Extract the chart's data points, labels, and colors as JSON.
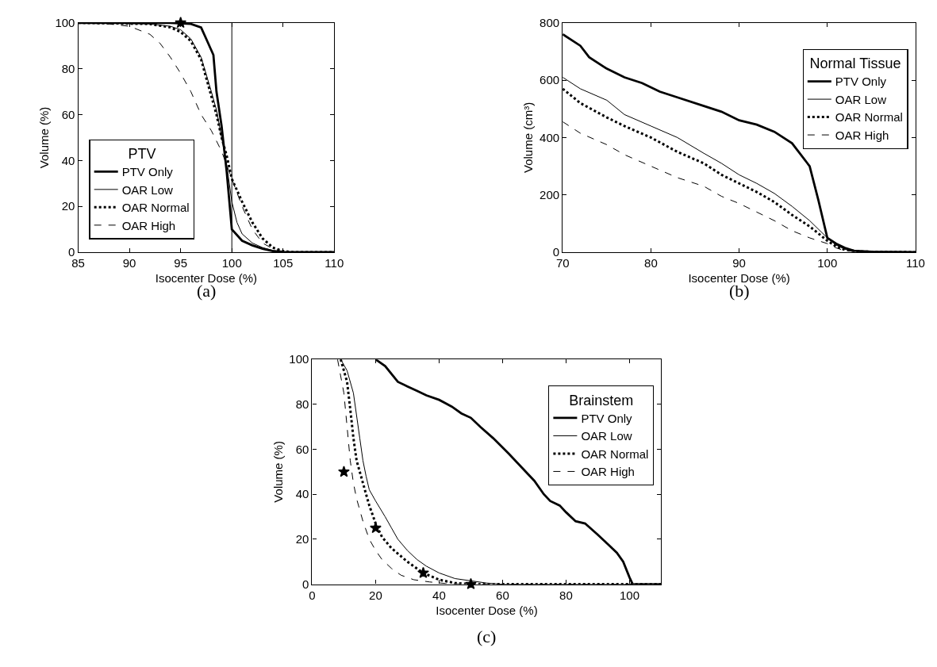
{
  "chart_data": [
    {
      "type": "line",
      "xlabel": "Isocenter Dose (%)",
      "ylabel": "Volume (%)",
      "legend_title": "PTV",
      "legend": "bottom left",
      "xlim": [
        85,
        110
      ],
      "xticks": [
        85,
        90,
        95,
        100,
        105,
        110
      ],
      "ylim": [
        0,
        100
      ],
      "yticks": [
        0,
        20,
        40,
        60,
        80,
        100
      ],
      "annotations": [
        "(a)"
      ],
      "ref_lines": [
        {
          "axis": "x",
          "value": 100,
          "color": "#000000"
        }
      ],
      "series": [
        {
          "name": "PTV Only",
          "color": "#000000",
          "line_style": "solid",
          "x": [
            85,
            94,
            96,
            97,
            97.5,
            98.2,
            98.5,
            99,
            99.5,
            100,
            101,
            102,
            103,
            104,
            105,
            110
          ],
          "values": [
            100,
            100,
            99.5,
            98,
            93,
            86,
            70,
            55,
            35,
            10,
            5,
            3,
            1.5,
            0.5,
            0,
            0
          ]
        },
        {
          "name": "OAR Low",
          "color": "#000000",
          "line_style": "solid",
          "x": [
            85,
            92,
            94,
            95,
            96,
            97,
            98,
            98.5,
            99,
            99.5,
            100,
            100.5,
            101,
            102,
            103,
            104,
            105,
            106,
            110
          ],
          "values": [
            100,
            99.5,
            98.5,
            97,
            93,
            85,
            70,
            62,
            50,
            38,
            22,
            13,
            8,
            4,
            2,
            0.8,
            0.2,
            0,
            0
          ]
        },
        {
          "name": "OAR Normal",
          "color": "#000000",
          "line_style": "dotted",
          "x": [
            85,
            92,
            94,
            95,
            96,
            97,
            98,
            98.5,
            99,
            99.5,
            100,
            101,
            102,
            103,
            104,
            105,
            106,
            110
          ],
          "values": [
            100,
            99.5,
            98,
            96,
            92,
            84,
            68,
            60,
            50,
            42,
            32,
            22,
            13,
            6,
            2,
            0.5,
            0,
            0
          ]
        },
        {
          "name": "OAR High",
          "color": "#000000",
          "line_style": "dashed",
          "x": [
            85,
            88,
            90,
            92,
            93,
            94,
            95,
            96,
            97,
            98,
            99,
            100,
            101,
            102,
            103,
            104,
            105,
            106,
            110
          ],
          "values": [
            100,
            99.5,
            98.5,
            95,
            91,
            85,
            78,
            70,
            60,
            53,
            44,
            32,
            20,
            10,
            4,
            1.5,
            0.3,
            0,
            0
          ]
        },
        {
          "type": "scatter",
          "marker": "star",
          "color": "#000000",
          "x": [
            95
          ],
          "values": [
            100
          ]
        }
      ]
    },
    {
      "type": "line",
      "xlabel": "Isocenter Dose (%)",
      "ylabel": "Volume (cm³)",
      "legend_title": "Normal Tissue",
      "legend": "top right",
      "xlim": [
        70,
        110
      ],
      "xticks": [
        70,
        80,
        90,
        100,
        110
      ],
      "ylim": [
        0,
        800
      ],
      "yticks": [
        0,
        200,
        400,
        600,
        800
      ],
      "annotations": [
        "(b)"
      ],
      "series": [
        {
          "name": "PTV Only",
          "color": "#000000",
          "line_style": "solid",
          "x": [
            70,
            72,
            73,
            75,
            77,
            79,
            81,
            83,
            86,
            88,
            90,
            92,
            94,
            96,
            98,
            99,
            100,
            101,
            102,
            103,
            105,
            110
          ],
          "values": [
            760,
            720,
            680,
            640,
            610,
            590,
            560,
            540,
            510,
            490,
            460,
            445,
            420,
            380,
            300,
            180,
            50,
            30,
            15,
            5,
            2,
            0
          ]
        },
        {
          "name": "OAR Low",
          "color": "#000000",
          "line_style": "solid",
          "x": [
            70,
            72,
            75,
            77,
            80,
            83,
            86,
            88,
            90,
            92,
            94,
            96,
            98,
            100,
            101,
            102,
            104,
            110
          ],
          "values": [
            610,
            570,
            530,
            480,
            440,
            400,
            345,
            310,
            270,
            240,
            205,
            160,
            110,
            50,
            25,
            10,
            3,
            0
          ]
        },
        {
          "name": "OAR Normal",
          "color": "#000000",
          "line_style": "dotted",
          "x": [
            70,
            72,
            75,
            77,
            80,
            83,
            86,
            88,
            90,
            92,
            94,
            96,
            98,
            100,
            101,
            102,
            104,
            110
          ],
          "values": [
            570,
            520,
            470,
            440,
            400,
            350,
            310,
            270,
            240,
            210,
            175,
            130,
            90,
            40,
            20,
            8,
            2,
            0
          ]
        },
        {
          "name": "OAR High",
          "color": "#000000",
          "line_style": "dashed",
          "x": [
            70,
            72,
            75,
            77,
            80,
            83,
            86,
            88,
            90,
            92,
            94,
            96,
            98,
            100,
            101,
            102,
            104,
            110
          ],
          "values": [
            455,
            415,
            375,
            340,
            300,
            260,
            230,
            195,
            170,
            140,
            110,
            75,
            50,
            30,
            15,
            5,
            1,
            0
          ]
        }
      ]
    },
    {
      "type": "line",
      "xlabel": "Isocenter Dose (%)",
      "ylabel": "Volume (%)",
      "legend_title": "Brainstem",
      "legend": "top right",
      "xlim": [
        0,
        110
      ],
      "xticks": [
        0,
        20,
        40,
        60,
        80,
        100
      ],
      "ylim": [
        0,
        100
      ],
      "yticks": [
        0,
        20,
        40,
        60,
        80,
        100
      ],
      "annotations": [
        "(c)"
      ],
      "series": [
        {
          "name": "PTV Only",
          "color": "#000000",
          "line_style": "solid",
          "x": [
            20,
            23,
            27,
            30,
            33,
            36,
            40,
            44,
            47,
            50,
            53,
            57,
            62,
            66,
            70,
            73,
            75,
            78,
            80,
            83,
            86,
            90,
            93,
            96,
            98,
            100,
            101,
            110
          ],
          "values": [
            100,
            97,
            90,
            88,
            86,
            84,
            82,
            79,
            76,
            74,
            70,
            65,
            58,
            52,
            46,
            40,
            37,
            35,
            32,
            28,
            27,
            22,
            18,
            14,
            10,
            3,
            0,
            0
          ]
        },
        {
          "name": "OAR Low",
          "color": "#000000",
          "line_style": "solid",
          "x": [
            9,
            11,
            13,
            14,
            15,
            16,
            17,
            18,
            20,
            23,
            25,
            27,
            30,
            33,
            36,
            40,
            45,
            50,
            55,
            60,
            110
          ],
          "values": [
            100,
            95,
            85,
            75,
            65,
            55,
            48,
            42,
            37,
            30,
            25,
            20,
            15,
            11,
            8,
            5,
            2.5,
            1.5,
            0.5,
            0,
            0
          ]
        },
        {
          "name": "OAR Normal",
          "color": "#000000",
          "line_style": "dotted",
          "x": [
            9,
            11,
            12,
            13,
            14,
            16,
            18,
            20,
            22,
            25,
            30,
            35,
            40,
            45,
            50,
            110
          ],
          "values": [
            100,
            90,
            78,
            65,
            55,
            45,
            35,
            27,
            21,
            16,
            10,
            5,
            2,
            0.5,
            0,
            0
          ]
        },
        {
          "name": "OAR High",
          "color": "#000000",
          "line_style": "dashed",
          "x": [
            8,
            10,
            11,
            12,
            13,
            14,
            16,
            18,
            20,
            22,
            25,
            28,
            32,
            37,
            42,
            50,
            110
          ],
          "values": [
            100,
            85,
            70,
            55,
            45,
            38,
            28,
            20,
            15,
            11,
            7,
            4,
            2,
            1,
            0.3,
            0,
            0
          ]
        },
        {
          "type": "scatter",
          "marker": "star",
          "color": "#000000",
          "x": [
            10,
            20,
            35,
            50
          ],
          "values": [
            50,
            25,
            5,
            0
          ]
        }
      ]
    }
  ]
}
